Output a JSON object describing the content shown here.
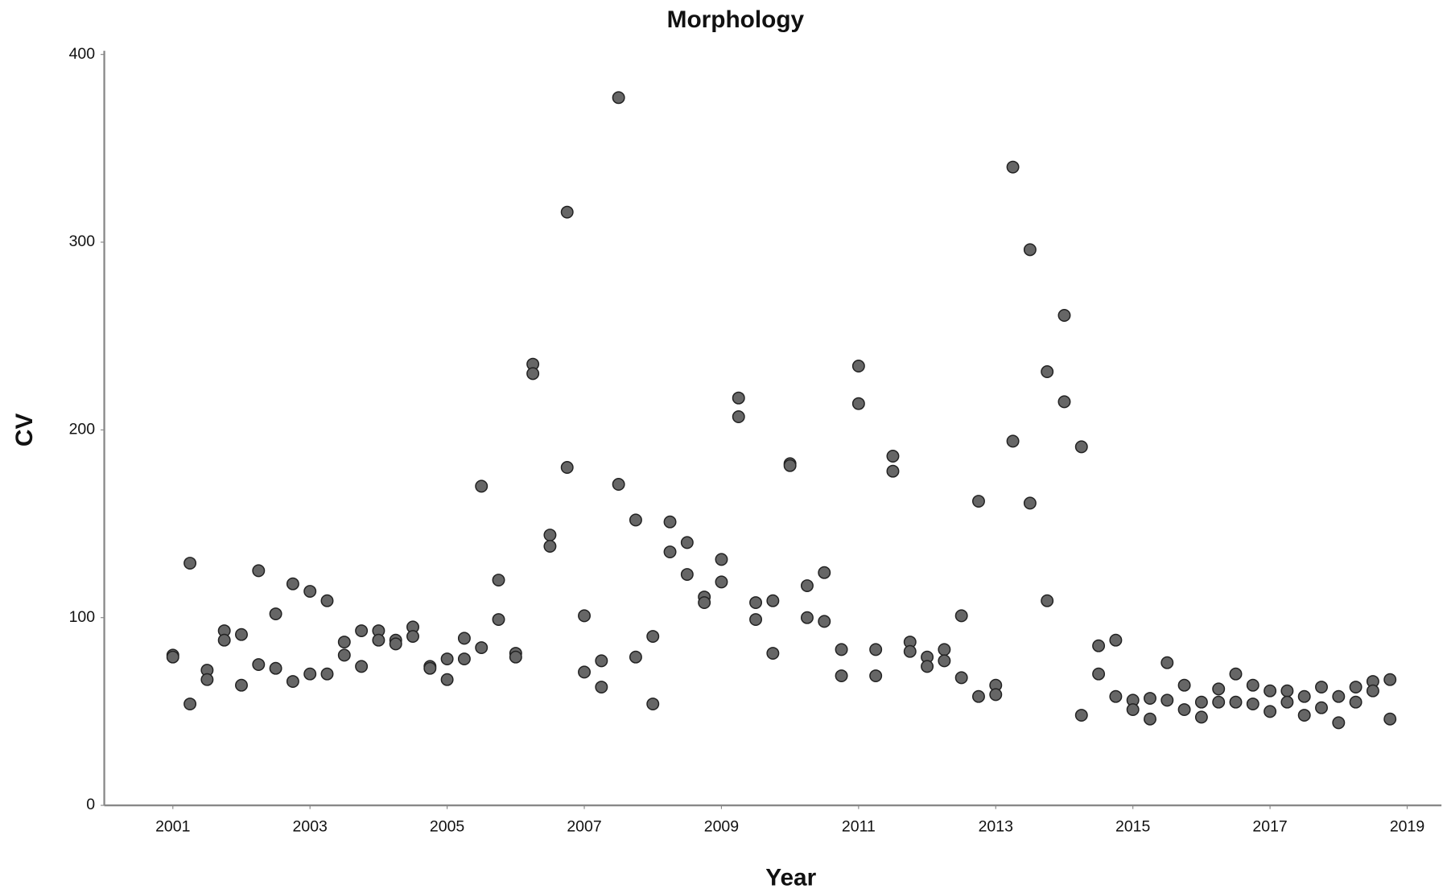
{
  "chart_data": {
    "type": "scatter",
    "title": "Morphology",
    "x_label": "Year",
    "y_label": "CV",
    "color": "#666666",
    "xlim": [
      2000,
      2019.5
    ],
    "xticks": [
      2001,
      2003,
      2005,
      2007,
      2009,
      2011,
      2013,
      2015,
      2017,
      2019
    ],
    "ylim": [
      0,
      400
    ],
    "yticks": [
      0,
      100,
      200,
      300,
      400
    ],
    "x": [
      2001,
      2001,
      2001.25,
      2001.25,
      2001.5,
      2001.5,
      2001.75,
      2001.75,
      2002,
      2002,
      2002.25,
      2002.25,
      2002.5,
      2002.5,
      2002.75,
      2002.75,
      2003,
      2003,
      2003.25,
      2003.25,
      2003.5,
      2003.5,
      2003.75,
      2003.75,
      2004,
      2004,
      2004.25,
      2004.25,
      2004.5,
      2004.5,
      2004.75,
      2004.75,
      2005,
      2005,
      2005.25,
      2005.25,
      2005.5,
      2005.5,
      2005.75,
      2005.75,
      2006,
      2006,
      2006.25,
      2006.25,
      2006.5,
      2006.5,
      2006.75,
      2006.75,
      2007,
      2007,
      2007.25,
      2007.25,
      2007.5,
      2007.5,
      2007.75,
      2007.75,
      2008,
      2008,
      2008.25,
      2008.25,
      2008.5,
      2008.5,
      2008.75,
      2008.75,
      2009,
      2009,
      2009.25,
      2009.25,
      2009.5,
      2009.5,
      2009.75,
      2009.75,
      2010,
      2010,
      2010.25,
      2010.25,
      2010.5,
      2010.5,
      2010.75,
      2010.75,
      2011,
      2011,
      2011.25,
      2011.25,
      2011.5,
      2011.5,
      2011.75,
      2011.75,
      2012,
      2012,
      2012.25,
      2012.25,
      2012.5,
      2012.5,
      2012.75,
      2012.75,
      2013,
      2013,
      2013.25,
      2013.25,
      2013.5,
      2013.5,
      2013.75,
      2013.75,
      2014,
      2014,
      2014.25,
      2014.25,
      2014.5,
      2014.5,
      2014.75,
      2014.75,
      2015,
      2015,
      2015.25,
      2015.25,
      2015.5,
      2015.5,
      2015.75,
      2015.75,
      2016,
      2016,
      2016.25,
      2016.25,
      2016.5,
      2016.5,
      2016.75,
      2016.75,
      2017,
      2017,
      2017.25,
      2017.25,
      2017.5,
      2017.5,
      2017.75,
      2017.75,
      2018,
      2018,
      2018.25,
      2018.25,
      2018.5,
      2018.5,
      2018.75,
      2018.75
    ],
    "values": [
      80,
      79,
      129,
      54,
      72,
      67,
      93,
      88,
      91,
      64,
      125,
      75,
      102,
      73,
      118,
      66,
      114,
      70,
      109,
      70,
      87,
      80,
      93,
      74,
      93,
      88,
      88,
      86,
      95,
      90,
      74,
      73,
      78,
      67,
      89,
      78,
      170,
      84,
      120,
      99,
      81,
      79,
      235,
      230,
      144,
      138,
      316,
      180,
      101,
      71,
      77,
      63,
      377,
      171,
      152,
      79,
      90,
      54,
      151,
      135,
      140,
      123,
      111,
      108,
      131,
      119,
      217,
      207,
      108,
      99,
      109,
      81,
      182,
      181,
      117,
      100,
      124,
      98,
      83,
      69,
      234,
      214,
      83,
      69,
      186,
      178,
      87,
      82,
      79,
      74,
      83,
      77,
      101,
      68,
      162,
      58,
      64,
      59,
      340,
      194,
      296,
      161,
      231,
      109,
      261,
      215,
      191,
      48,
      85,
      70,
      88,
      58,
      56,
      51,
      57,
      46,
      76,
      56,
      64,
      51,
      55,
      47,
      62,
      55,
      70,
      55,
      64,
      54,
      61,
      50,
      61,
      55,
      58,
      48,
      63,
      52,
      58,
      44,
      63,
      55,
      66,
      61,
      67,
      46
    ]
  }
}
